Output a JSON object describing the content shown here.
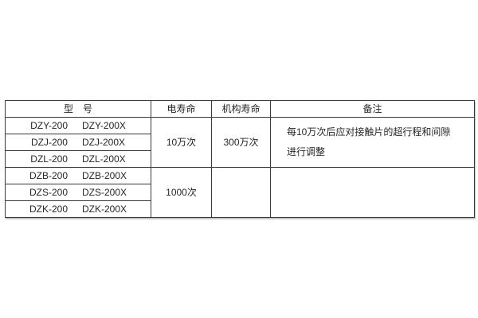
{
  "page": {
    "background": "#ffffff"
  },
  "table": {
    "headers": {
      "model": "型　号",
      "electrical_life": "电寿命",
      "mechanism_life": "机构寿命",
      "remarks": "备注"
    },
    "groups": [
      {
        "models": [
          {
            "a": "DZY-200",
            "b": "DZY-200X"
          },
          {
            "a": "DZJ-200",
            "b": "DZJ-200X"
          },
          {
            "a": "DZL-200",
            "b": "DZL-200X"
          }
        ],
        "electrical_life": "10万次",
        "mechanism_life": "300万次",
        "remarks_lines": [
          "每10万次后应对接触片的超行程和间隙",
          "进行调整"
        ]
      },
      {
        "models": [
          {
            "a": "DZB-200",
            "b": "DZB-200X"
          },
          {
            "a": "DZS-200",
            "b": "DZS-200X"
          },
          {
            "a": "DZK-200",
            "b": "DZK-200X"
          }
        ],
        "electrical_life": "1000次",
        "mechanism_life": "",
        "remarks_lines": [
          "",
          ""
        ]
      }
    ],
    "colors": {
      "border": "#3a3a3a",
      "text": "#262626",
      "background": "#ffffff"
    }
  }
}
